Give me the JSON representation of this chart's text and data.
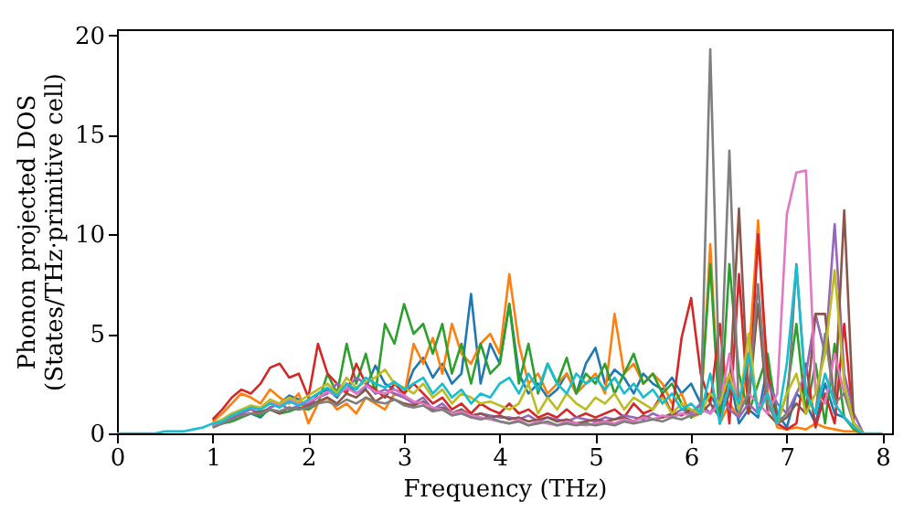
{
  "chart_data": {
    "type": "line",
    "xlabel": "Frequency (THz)",
    "ylabel": "Phonon projected DOS\n(States/THz·primitive cell)",
    "xlim": [
      0,
      8.1
    ],
    "ylim": [
      0,
      20.3
    ],
    "xticks": [
      0,
      1,
      2,
      3,
      4,
      5,
      6,
      7,
      8
    ],
    "yticks": [
      0,
      5,
      10,
      15,
      20
    ],
    "grid": false,
    "legend": false,
    "line_style": "solid",
    "x": [
      0.0,
      0.1,
      0.2,
      0.3,
      0.4,
      0.5,
      0.6,
      0.7,
      0.8,
      0.9,
      1.0,
      1.1,
      1.2,
      1.3,
      1.4,
      1.5,
      1.6,
      1.7,
      1.8,
      1.9,
      2.0,
      2.1,
      2.2,
      2.3,
      2.4,
      2.5,
      2.6,
      2.7,
      2.8,
      2.9,
      3.0,
      3.1,
      3.2,
      3.3,
      3.4,
      3.5,
      3.6,
      3.7,
      3.8,
      3.9,
      4.0,
      4.1,
      4.2,
      4.3,
      4.4,
      4.5,
      4.6,
      4.7,
      4.8,
      4.9,
      5.0,
      5.1,
      5.2,
      5.3,
      5.4,
      5.5,
      5.6,
      5.7,
      5.8,
      5.9,
      6.0,
      6.1,
      6.2,
      6.3,
      6.4,
      6.5,
      6.6,
      6.7,
      6.8,
      6.9,
      7.0,
      7.1,
      7.2,
      7.3,
      7.4,
      7.5,
      7.6,
      7.7,
      7.8,
      7.9,
      8.0
    ],
    "series": [
      {
        "color": "#1f77b4",
        "values": [
          null,
          null,
          null,
          null,
          null,
          null,
          null,
          null,
          null,
          null,
          0.4,
          0.6,
          0.8,
          0.9,
          1.0,
          0.8,
          1.3,
          1.5,
          1.9,
          1.7,
          1.2,
          2.0,
          2.2,
          1.8,
          2.5,
          2.0,
          2.3,
          3.4,
          2.5,
          2.2,
          2.0,
          3.2,
          3.8,
          2.8,
          3.5,
          2.5,
          3.0,
          7.0,
          2.5,
          4.5,
          3.5,
          6.5,
          3.0,
          2.0,
          2.5,
          1.8,
          2.2,
          3.0,
          2.0,
          3.5,
          4.3,
          2.5,
          3.2,
          2.8,
          2.0,
          3.0,
          2.5,
          2.2,
          2.8,
          2.0,
          2.5,
          1.5,
          2.0,
          1.0,
          3.0,
          0.5,
          1.2,
          0.8,
          3.5,
          1.0,
          0.3,
          2.0,
          1.5,
          0.5,
          2.5,
          1.0,
          0.8,
          0.3,
          0,
          null,
          null
        ]
      },
      {
        "color": "#ff7f0e",
        "values": [
          null,
          null,
          null,
          null,
          null,
          null,
          null,
          null,
          null,
          null,
          0.6,
          1.0,
          1.5,
          2.0,
          1.8,
          1.5,
          2.2,
          1.8,
          1.5,
          2.0,
          0.5,
          1.5,
          1.8,
          1.2,
          1.5,
          1.0,
          1.8,
          1.5,
          1.2,
          2.0,
          1.8,
          4.5,
          3.5,
          4.8,
          3.0,
          5.5,
          4.0,
          3.5,
          4.5,
          5.0,
          4.0,
          8.0,
          4.5,
          2.5,
          3.0,
          2.0,
          2.5,
          3.0,
          2.0,
          2.5,
          3.0,
          2.0,
          6.0,
          3.0,
          3.5,
          2.5,
          3.0,
          2.5,
          1.5,
          2.0,
          0.8,
          1.0,
          9.5,
          0.5,
          1.5,
          0.8,
          3.5,
          10.7,
          2.0,
          0.3,
          0.2,
          0.3,
          0.2,
          0.5,
          0.3,
          0.2,
          0.1,
          0.1,
          0,
          null,
          null
        ]
      },
      {
        "color": "#2ca02c",
        "values": [
          null,
          null,
          null,
          null,
          null,
          null,
          null,
          null,
          null,
          null,
          0.4,
          0.5,
          0.6,
          0.8,
          1.0,
          0.9,
          1.2,
          1.0,
          1.1,
          1.3,
          1.2,
          1.5,
          3.0,
          2.0,
          4.5,
          2.5,
          4.0,
          2.0,
          5.5,
          4.5,
          6.5,
          5.0,
          5.5,
          4.0,
          5.5,
          3.0,
          4.5,
          2.5,
          4.5,
          3.0,
          3.5,
          6.5,
          2.5,
          4.5,
          2.0,
          3.5,
          2.5,
          3.8,
          2.0,
          3.0,
          2.5,
          3.5,
          2.0,
          3.0,
          4.0,
          2.5,
          3.0,
          2.0,
          2.5,
          1.5,
          0.8,
          1.5,
          8.5,
          0.5,
          8.5,
          3.0,
          1.0,
          2.5,
          4.0,
          0.5,
          2.0,
          5.5,
          1.0,
          3.5,
          0.5,
          4.5,
          0.8,
          0.2,
          0,
          null,
          null
        ]
      },
      {
        "color": "#d62728",
        "values": [
          null,
          null,
          null,
          null,
          null,
          null,
          null,
          null,
          null,
          null,
          0.7,
          1.2,
          1.8,
          2.2,
          2.0,
          2.5,
          3.3,
          3.5,
          2.8,
          3.0,
          1.8,
          4.5,
          3.0,
          2.5,
          2.0,
          3.5,
          2.5,
          2.2,
          1.8,
          2.5,
          2.0,
          2.5,
          2.0,
          1.5,
          1.8,
          1.2,
          1.5,
          1.0,
          1.5,
          1.2,
          1.0,
          1.5,
          1.0,
          1.2,
          0.8,
          1.0,
          0.8,
          1.2,
          0.8,
          1.0,
          0.8,
          1.0,
          1.2,
          0.8,
          1.5,
          1.0,
          1.2,
          2.0,
          1.0,
          4.8,
          6.8,
          3.0,
          1.5,
          5.5,
          0.5,
          8.0,
          1.0,
          10.0,
          3.0,
          0.5,
          0.2,
          0.5,
          3.5,
          0.3,
          2.0,
          0.5,
          5.5,
          0.3,
          0,
          null,
          null
        ]
      },
      {
        "color": "#9467bd",
        "values": [
          null,
          null,
          null,
          null,
          null,
          null,
          null,
          null,
          null,
          null,
          0.4,
          0.6,
          0.8,
          1.0,
          1.2,
          1.0,
          1.3,
          1.5,
          1.2,
          1.4,
          1.5,
          1.8,
          2.0,
          2.5,
          2.2,
          2.8,
          2.5,
          2.0,
          2.2,
          2.0,
          1.8,
          1.5,
          1.8,
          1.2,
          1.5,
          1.0,
          1.2,
          0.8,
          1.0,
          0.9,
          0.8,
          0.8,
          0.7,
          0.9,
          0.6,
          0.8,
          0.7,
          0.6,
          0.8,
          0.7,
          0.6,
          0.8,
          0.7,
          0.9,
          0.8,
          0.7,
          1.0,
          0.8,
          0.9,
          1.2,
          1.0,
          1.5,
          1.0,
          2.0,
          1.2,
          0.8,
          1.5,
          1.0,
          2.5,
          1.5,
          1.0,
          2.0,
          3.0,
          6.0,
          4.0,
          10.5,
          3.0,
          1.0,
          0,
          null,
          null
        ]
      },
      {
        "color": "#8c564b",
        "values": [
          null,
          null,
          null,
          null,
          null,
          null,
          null,
          null,
          null,
          null,
          0.3,
          0.5,
          0.7,
          0.9,
          1.0,
          1.1,
          1.2,
          1.0,
          1.3,
          1.2,
          1.4,
          1.6,
          1.8,
          1.5,
          2.0,
          1.8,
          2.2,
          1.6,
          1.9,
          1.7,
          1.5,
          1.4,
          1.6,
          1.2,
          1.3,
          1.0,
          1.2,
          0.9,
          1.0,
          0.8,
          0.9,
          0.7,
          0.8,
          0.6,
          0.7,
          0.8,
          0.6,
          0.7,
          0.5,
          0.6,
          0.7,
          0.6,
          0.7,
          0.8,
          0.6,
          0.9,
          0.7,
          0.8,
          1.0,
          0.9,
          1.2,
          1.0,
          1.5,
          0.8,
          2.0,
          11.3,
          1.5,
          6.5,
          1.0,
          0.5,
          0.8,
          1.5,
          1.0,
          6.0,
          6.0,
          1.5,
          11.2,
          0.5,
          0,
          null,
          null
        ]
      },
      {
        "color": "#e377c2",
        "values": [
          null,
          null,
          null,
          null,
          null,
          null,
          null,
          null,
          null,
          null,
          0.4,
          0.6,
          0.9,
          1.1,
          1.3,
          1.2,
          1.6,
          1.4,
          1.7,
          1.5,
          1.6,
          1.8,
          2.1,
          1.9,
          2.3,
          2.0,
          2.4,
          2.1,
          2.0,
          2.2,
          1.9,
          1.6,
          1.5,
          1.3,
          1.2,
          1.0,
          1.1,
          0.9,
          0.8,
          0.7,
          0.6,
          0.5,
          0.7,
          0.4,
          0.6,
          0.5,
          0.4,
          0.6,
          0.5,
          0.4,
          0.5,
          0.6,
          0.5,
          0.7,
          0.6,
          0.8,
          0.7,
          0.9,
          0.8,
          1.0,
          0.9,
          1.2,
          1.0,
          1.5,
          4.0,
          1.2,
          2.0,
          1.5,
          1.0,
          2.0,
          11.0,
          13.1,
          13.2,
          2.0,
          1.5,
          4.0,
          2.0,
          0.5,
          0,
          null,
          null
        ]
      },
      {
        "color": "#7f7f7f",
        "values": [
          null,
          null,
          null,
          null,
          null,
          null,
          null,
          null,
          null,
          null,
          0.3,
          0.5,
          0.7,
          0.9,
          1.0,
          1.0,
          1.2,
          1.1,
          1.3,
          1.2,
          1.3,
          1.5,
          1.6,
          1.4,
          1.7,
          1.5,
          1.8,
          1.6,
          1.5,
          1.7,
          1.4,
          1.3,
          1.4,
          1.1,
          1.2,
          0.9,
          1.0,
          0.8,
          0.7,
          0.8,
          0.6,
          0.5,
          0.6,
          0.4,
          0.5,
          0.6,
          0.4,
          0.5,
          0.4,
          0.5,
          0.4,
          0.5,
          0.4,
          0.6,
          0.5,
          0.6,
          0.7,
          0.6,
          0.8,
          0.7,
          0.9,
          1.0,
          19.3,
          1.5,
          14.2,
          1.0,
          2.0,
          7.5,
          1.5,
          0.5,
          1.0,
          8.5,
          2.0,
          1.0,
          5.0,
          1.5,
          2.0,
          0.5,
          0,
          null,
          null
        ]
      },
      {
        "color": "#bcbd22",
        "values": [
          null,
          null,
          null,
          null,
          null,
          null,
          null,
          null,
          null,
          null,
          0.5,
          0.7,
          1.0,
          1.2,
          1.4,
          1.3,
          1.7,
          1.5,
          1.8,
          1.6,
          1.9,
          2.2,
          2.5,
          2.0,
          2.8,
          2.3,
          2.6,
          2.8,
          3.2,
          2.5,
          2.3,
          2.0,
          2.5,
          1.8,
          2.2,
          1.5,
          2.0,
          1.8,
          1.5,
          1.6,
          1.4,
          1.2,
          1.5,
          2.5,
          1.0,
          1.8,
          1.2,
          2.0,
          1.5,
          1.2,
          1.8,
          1.5,
          2.0,
          1.2,
          1.8,
          1.5,
          1.2,
          1.8,
          1.0,
          1.5,
          1.2,
          1.0,
          2.0,
          1.5,
          3.0,
          1.2,
          5.0,
          1.0,
          2.0,
          0.5,
          2.0,
          3.0,
          1.0,
          2.0,
          4.0,
          8.2,
          2.5,
          0.5,
          0,
          null,
          null
        ]
      },
      {
        "color": "#17becf",
        "values": [
          0,
          0,
          0,
          0,
          0,
          0.1,
          0.1,
          0.1,
          0.2,
          0.3,
          0.5,
          0.6,
          0.9,
          1.1,
          1.3,
          1.2,
          1.5,
          1.3,
          1.6,
          1.4,
          1.7,
          2.0,
          2.3,
          1.9,
          2.5,
          2.2,
          2.8,
          2.5,
          2.3,
          2.6,
          2.2,
          2.5,
          2.8,
          2.0,
          2.5,
          1.8,
          2.2,
          1.5,
          2.0,
          1.8,
          2.5,
          2.8,
          2.0,
          3.0,
          2.2,
          3.5,
          2.5,
          2.0,
          3.0,
          2.5,
          2.8,
          2.2,
          2.8,
          2.0,
          2.5,
          1.8,
          2.2,
          1.5,
          2.0,
          1.2,
          1.5,
          1.0,
          3.0,
          0.5,
          2.5,
          1.5,
          4.0,
          1.0,
          2.0,
          0.5,
          3.5,
          8.4,
          2.0,
          1.0,
          3.0,
          1.5,
          0.8,
          0.3,
          0,
          0,
          0
        ]
      }
    ]
  }
}
